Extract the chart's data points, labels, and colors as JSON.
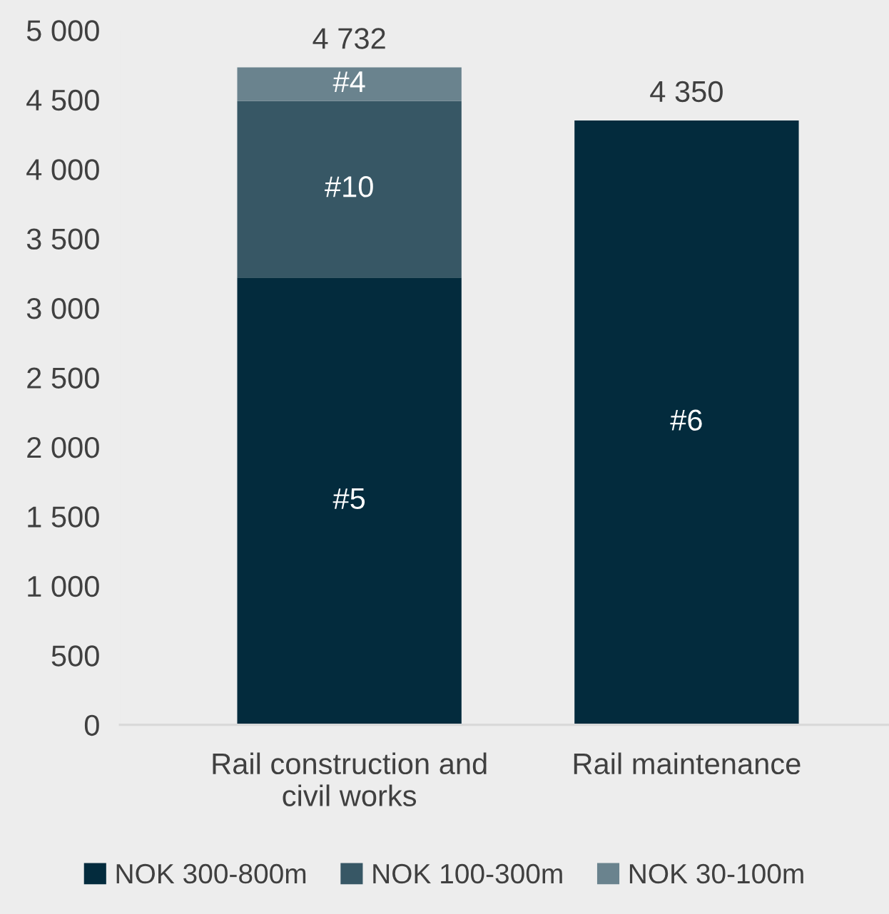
{
  "chart_data": {
    "type": "bar",
    "stacked": true,
    "categories": [
      "Rail construction and\ncivil works",
      "Rail maintenance"
    ],
    "series": [
      {
        "name": "NOK 300-800m",
        "color": "#032b3d",
        "values": [
          3220,
          4350
        ]
      },
      {
        "name": "NOK 100-300m",
        "color": "#375765",
        "values": [
          1270,
          null
        ]
      },
      {
        "name": "NOK 30-100m",
        "color": "#6a838e",
        "values": [
          242,
          null
        ]
      }
    ],
    "annotations": [
      "#5",
      "#6",
      "#10",
      "#4"
    ],
    "grid": false,
    "totals": [
      "4 732",
      "4 350"
    ],
    "ylim": [
      0,
      5000
    ],
    "yticks": [
      0,
      500,
      {
        "value": 1000,
        "label": "1 000"
      },
      {
        "value": 1500,
        "label": "1 500"
      },
      {
        "value": 2000,
        "label": "2 000"
      },
      {
        "value": 2500,
        "label": "2 500"
      },
      {
        "value": 3000,
        "label": "3 000"
      },
      {
        "value": 3500,
        "label": "3 500"
      },
      {
        "value": 4000,
        "label": "4 000"
      },
      {
        "value": 4500,
        "label": "4 500"
      },
      {
        "value": 5000,
        "label": "5 000"
      }
    ],
    "legend": "bottom"
  }
}
